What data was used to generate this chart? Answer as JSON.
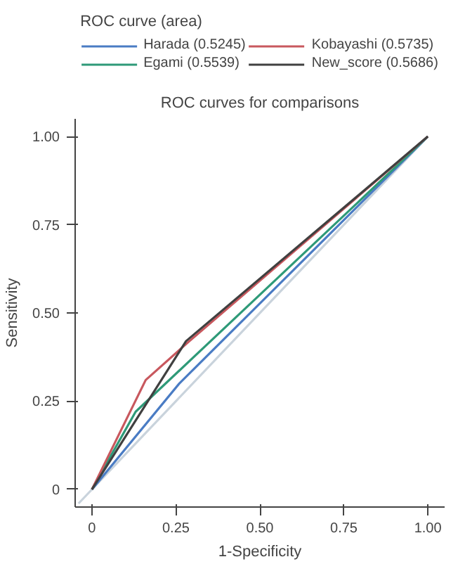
{
  "chart_data": {
    "type": "line",
    "title": "ROC curves for comparisons",
    "legend_title": "ROC curve (area)",
    "xlabel": "1-Specificity",
    "ylabel": "Sensitivity",
    "xlim": [
      -0.05,
      1.05
    ],
    "ylim": [
      -0.05,
      1.05
    ],
    "xticks": [
      {
        "value": 0,
        "label": "0"
      },
      {
        "value": 0.25,
        "label": "0.25"
      },
      {
        "value": 0.5,
        "label": "0.50"
      },
      {
        "value": 0.75,
        "label": "0.75"
      },
      {
        "value": 1,
        "label": "1.00"
      }
    ],
    "yticks": [
      {
        "value": 0,
        "label": "0"
      },
      {
        "value": 0.25,
        "label": "0.25"
      },
      {
        "value": 0.5,
        "label": "0.50"
      },
      {
        "value": 0.75,
        "label": "0.75"
      },
      {
        "value": 1,
        "label": "1.00"
      }
    ],
    "grid": false,
    "legend": "top",
    "marker": "none",
    "line_style": "solid",
    "series": [
      {
        "color": "#c9d3dc",
        "x": [
          -0.04,
          1
        ],
        "values": [
          -0.04,
          1
        ]
      },
      {
        "name": "Harada (0.5245)",
        "color": "#4a7cc4",
        "x": [
          0,
          0.26,
          1
        ],
        "values": [
          0,
          0.3,
          1
        ]
      },
      {
        "name": "Egami (0.5539)",
        "color": "#2e9a78",
        "x": [
          0,
          0.13,
          1
        ],
        "values": [
          0,
          0.22,
          1
        ]
      },
      {
        "name": "Kobayashi (0.5735)",
        "color": "#c8585e",
        "x": [
          0,
          0.16,
          0.29,
          1
        ],
        "values": [
          0,
          0.31,
          0.42,
          1
        ]
      },
      {
        "name": "New_score (0.5686)",
        "color": "#404040",
        "x": [
          0,
          0.28,
          1
        ],
        "values": [
          0,
          0.42,
          1
        ]
      }
    ]
  }
}
